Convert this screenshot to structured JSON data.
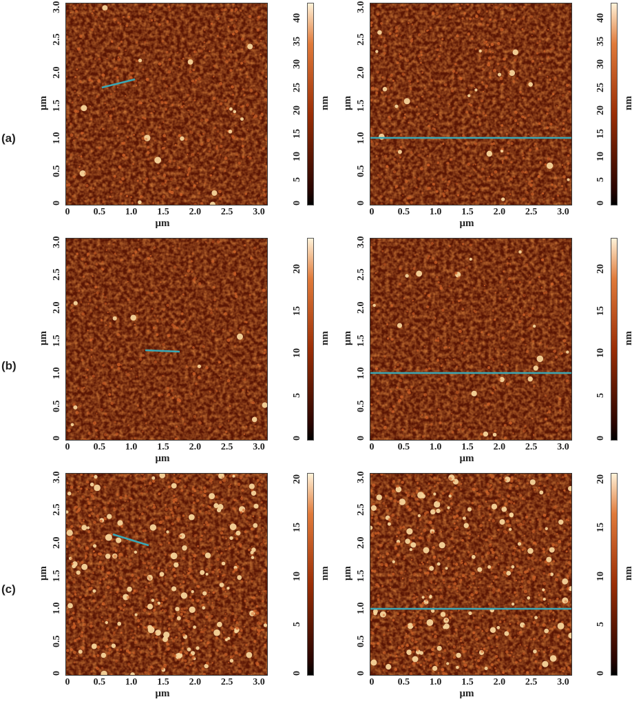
{
  "rows": [
    {
      "label": "(a)",
      "cb_ticks": [
        "0",
        "5",
        "10",
        "15",
        "20",
        "25",
        "30",
        "35",
        "40"
      ],
      "cb_max": 43
    },
    {
      "label": "(b)",
      "cb_ticks": [
        "0",
        "5",
        "10",
        "15",
        "20"
      ],
      "cb_max": 23.5
    },
    {
      "label": "(c)",
      "cb_ticks": [
        "0",
        "5",
        "10",
        "15",
        "20"
      ],
      "cb_max": 20.5
    }
  ],
  "axis": {
    "x_ticks": [
      "0",
      "0.5",
      "1.0",
      "1.5",
      "2.0",
      "2.5",
      "3.0"
    ],
    "y_ticks": [
      "0",
      "0.5",
      "1.0",
      "1.5",
      "2.0",
      "2.5",
      "3.0"
    ],
    "x_label": "μm",
    "y_label": "μm",
    "cb_label": "nm"
  },
  "colors": {
    "line": "#3aa7b5",
    "low": "#2a0500",
    "mid": "#9a2e06",
    "high": "#fff2d8"
  }
}
